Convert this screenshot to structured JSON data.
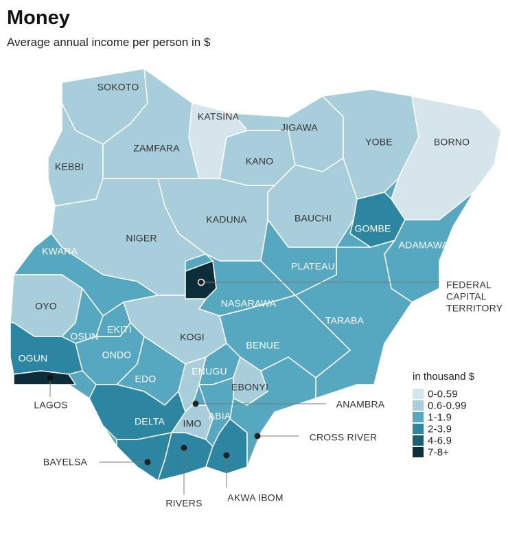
{
  "title": "Money",
  "subtitle": "Average annual income per person in $",
  "legend": {
    "title": "in thousand $",
    "items": [
      {
        "label": "0-0.59",
        "color": "#d6e5ec"
      },
      {
        "label": "0.6-0.99",
        "color": "#a8cddb"
      },
      {
        "label": "1-1.9",
        "color": "#56a8c0"
      },
      {
        "label": "2-3.9",
        "color": "#2c86a2"
      },
      {
        "label": "4-6.9",
        "color": "#1b5f74"
      },
      {
        "label": "7-8+",
        "color": "#0c2e3a"
      }
    ]
  },
  "states": [
    {
      "name": "SOKOTO",
      "color": "#a8cddb"
    },
    {
      "name": "KEBBI",
      "color": "#a8cddb"
    },
    {
      "name": "ZAMFARA",
      "color": "#a8cddb"
    },
    {
      "name": "KATSINA",
      "color": "#d6e5ec"
    },
    {
      "name": "KANO",
      "color": "#a8cddb"
    },
    {
      "name": "JIGAWA",
      "color": "#a8cddb"
    },
    {
      "name": "YOBE",
      "color": "#a8cddb"
    },
    {
      "name": "BORNO",
      "color": "#d6e5ec"
    },
    {
      "name": "BAUCHI",
      "color": "#a8cddb"
    },
    {
      "name": "GOMBE",
      "color": "#2c86a2"
    },
    {
      "name": "ADAMAWA",
      "color": "#56a8c0"
    },
    {
      "name": "TARABA",
      "color": "#56a8c0"
    },
    {
      "name": "PLATEAU",
      "color": "#56a8c0"
    },
    {
      "name": "KADUNA",
      "color": "#a8cddb"
    },
    {
      "name": "NIGER",
      "color": "#a8cddb"
    },
    {
      "name": "NASARAWA",
      "color": "#56a8c0"
    },
    {
      "name": "KWARA",
      "color": "#56a8c0"
    },
    {
      "name": "OYO",
      "color": "#a8cddb"
    },
    {
      "name": "OSUN",
      "color": "#56a8c0"
    },
    {
      "name": "EKITI",
      "color": "#56a8c0"
    },
    {
      "name": "KOGI",
      "color": "#a8cddb"
    },
    {
      "name": "ONDO",
      "color": "#56a8c0"
    },
    {
      "name": "OGUN",
      "color": "#2c86a2"
    },
    {
      "name": "LAGOS",
      "color": "#0c2e3a"
    },
    {
      "name": "EDO",
      "color": "#56a8c0"
    },
    {
      "name": "DELTA",
      "color": "#2c86a2"
    },
    {
      "name": "BAYELSA",
      "color": "#2c86a2"
    },
    {
      "name": "RIVERS",
      "color": "#2c86a2"
    },
    {
      "name": "ANAMBRA",
      "color": "#a8cddb"
    },
    {
      "name": "ENUGU",
      "color": "#56a8c0"
    },
    {
      "name": "EBONYI",
      "color": "#a8cddb"
    },
    {
      "name": "IMO",
      "color": "#a8cddb"
    },
    {
      "name": "ABIA",
      "color": "#56a8c0"
    },
    {
      "name": "AKWA IBOM",
      "color": "#2c86a2"
    },
    {
      "name": "CROSS RIVER",
      "color": "#56a8c0"
    },
    {
      "name": "BENUE",
      "color": "#56a8c0"
    },
    {
      "name": "FEDERAL\nCAPITAL\nTERRITORY",
      "color": "#0c2e3a"
    }
  ]
}
